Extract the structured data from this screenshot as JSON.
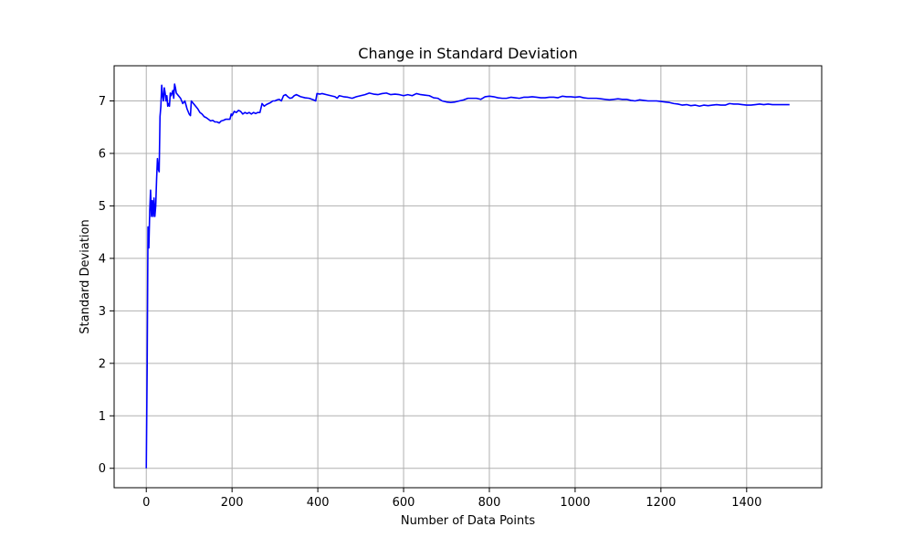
{
  "chart_data": {
    "type": "line",
    "title": "Change in Standard Deviation",
    "xlabel": "Number of Data Points",
    "ylabel": "Standard Deviation",
    "xlim": [
      -75,
      1575
    ],
    "ylim": [
      -0.37,
      7.67
    ],
    "xticks": [
      0,
      200,
      400,
      600,
      800,
      1000,
      1200,
      1400
    ],
    "yticks": [
      0,
      1,
      2,
      3,
      4,
      5,
      6,
      7
    ],
    "grid": true,
    "legend": "none",
    "series": [
      {
        "color": "#0000ff",
        "points": [
          [
            0,
            0
          ],
          [
            2,
            1.9
          ],
          [
            4,
            4.6
          ],
          [
            6,
            4.2
          ],
          [
            8,
            4.9
          ],
          [
            10,
            5.3
          ],
          [
            12,
            4.8
          ],
          [
            14,
            5.1
          ],
          [
            16,
            4.8
          ],
          [
            18,
            5.15
          ],
          [
            20,
            4.8
          ],
          [
            22,
            5.0
          ],
          [
            24,
            5.5
          ],
          [
            26,
            5.9
          ],
          [
            28,
            5.7
          ],
          [
            30,
            5.65
          ],
          [
            32,
            6.7
          ],
          [
            34,
            6.9
          ],
          [
            36,
            7.3
          ],
          [
            38,
            7.1
          ],
          [
            40,
            7.0
          ],
          [
            42,
            7.25
          ],
          [
            44,
            7.15
          ],
          [
            46,
            7.0
          ],
          [
            48,
            7.1
          ],
          [
            50,
            6.9
          ],
          [
            52,
            6.95
          ],
          [
            54,
            6.9
          ],
          [
            56,
            7.15
          ],
          [
            58,
            7.1
          ],
          [
            60,
            7.15
          ],
          [
            62,
            7.2
          ],
          [
            64,
            7.05
          ],
          [
            66,
            7.32
          ],
          [
            68,
            7.25
          ],
          [
            70,
            7.15
          ],
          [
            75,
            7.1
          ],
          [
            80,
            7.05
          ],
          [
            85,
            6.95
          ],
          [
            90,
            7.0
          ],
          [
            95,
            6.85
          ],
          [
            100,
            6.75
          ],
          [
            103,
            6.72
          ],
          [
            105,
            7.0
          ],
          [
            110,
            6.95
          ],
          [
            115,
            6.9
          ],
          [
            120,
            6.85
          ],
          [
            125,
            6.78
          ],
          [
            130,
            6.75
          ],
          [
            135,
            6.7
          ],
          [
            140,
            6.68
          ],
          [
            145,
            6.65
          ],
          [
            150,
            6.62
          ],
          [
            155,
            6.63
          ],
          [
            160,
            6.6
          ],
          [
            165,
            6.6
          ],
          [
            170,
            6.58
          ],
          [
            175,
            6.62
          ],
          [
            180,
            6.63
          ],
          [
            185,
            6.65
          ],
          [
            190,
            6.65
          ],
          [
            195,
            6.65
          ],
          [
            198,
            6.75
          ],
          [
            200,
            6.72
          ],
          [
            205,
            6.8
          ],
          [
            210,
            6.78
          ],
          [
            215,
            6.82
          ],
          [
            220,
            6.8
          ],
          [
            225,
            6.75
          ],
          [
            230,
            6.78
          ],
          [
            235,
            6.76
          ],
          [
            240,
            6.78
          ],
          [
            245,
            6.75
          ],
          [
            250,
            6.78
          ],
          [
            255,
            6.76
          ],
          [
            260,
            6.78
          ],
          [
            265,
            6.78
          ],
          [
            270,
            6.95
          ],
          [
            275,
            6.9
          ],
          [
            280,
            6.93
          ],
          [
            285,
            6.95
          ],
          [
            290,
            6.97
          ],
          [
            295,
            7.0
          ],
          [
            300,
            7.0
          ],
          [
            305,
            7.02
          ],
          [
            310,
            7.03
          ],
          [
            315,
            7.0
          ],
          [
            320,
            7.1
          ],
          [
            325,
            7.12
          ],
          [
            330,
            7.08
          ],
          [
            335,
            7.05
          ],
          [
            340,
            7.06
          ],
          [
            345,
            7.1
          ],
          [
            350,
            7.12
          ],
          [
            355,
            7.1
          ],
          [
            360,
            7.08
          ],
          [
            370,
            7.06
          ],
          [
            380,
            7.05
          ],
          [
            390,
            7.02
          ],
          [
            395,
            7.0
          ],
          [
            398,
            7.14
          ],
          [
            405,
            7.13
          ],
          [
            410,
            7.14
          ],
          [
            420,
            7.12
          ],
          [
            430,
            7.1
          ],
          [
            440,
            7.08
          ],
          [
            445,
            7.05
          ],
          [
            450,
            7.1
          ],
          [
            460,
            7.08
          ],
          [
            470,
            7.07
          ],
          [
            480,
            7.05
          ],
          [
            490,
            7.08
          ],
          [
            500,
            7.1
          ],
          [
            510,
            7.12
          ],
          [
            520,
            7.15
          ],
          [
            530,
            7.13
          ],
          [
            540,
            7.12
          ],
          [
            550,
            7.14
          ],
          [
            560,
            7.15
          ],
          [
            570,
            7.12
          ],
          [
            580,
            7.13
          ],
          [
            590,
            7.12
          ],
          [
            600,
            7.1
          ],
          [
            610,
            7.12
          ],
          [
            620,
            7.1
          ],
          [
            630,
            7.14
          ],
          [
            640,
            7.12
          ],
          [
            650,
            7.11
          ],
          [
            660,
            7.1
          ],
          [
            670,
            7.06
          ],
          [
            680,
            7.05
          ],
          [
            690,
            7.0
          ],
          [
            700,
            6.98
          ],
          [
            710,
            6.97
          ],
          [
            720,
            6.98
          ],
          [
            730,
            7.0
          ],
          [
            740,
            7.02
          ],
          [
            750,
            7.05
          ],
          [
            760,
            7.05
          ],
          [
            770,
            7.05
          ],
          [
            780,
            7.03
          ],
          [
            790,
            7.08
          ],
          [
            800,
            7.09
          ],
          [
            810,
            7.08
          ],
          [
            820,
            7.06
          ],
          [
            830,
            7.05
          ],
          [
            840,
            7.05
          ],
          [
            850,
            7.07
          ],
          [
            860,
            7.06
          ],
          [
            870,
            7.05
          ],
          [
            880,
            7.07
          ],
          [
            890,
            7.07
          ],
          [
            900,
            7.08
          ],
          [
            910,
            7.07
          ],
          [
            920,
            7.06
          ],
          [
            930,
            7.06
          ],
          [
            940,
            7.07
          ],
          [
            950,
            7.07
          ],
          [
            960,
            7.06
          ],
          [
            970,
            7.09
          ],
          [
            980,
            7.08
          ],
          [
            990,
            7.08
          ],
          [
            1000,
            7.07
          ],
          [
            1010,
            7.08
          ],
          [
            1020,
            7.06
          ],
          [
            1030,
            7.05
          ],
          [
            1040,
            7.05
          ],
          [
            1050,
            7.05
          ],
          [
            1060,
            7.04
          ],
          [
            1070,
            7.03
          ],
          [
            1080,
            7.02
          ],
          [
            1090,
            7.03
          ],
          [
            1100,
            7.04
          ],
          [
            1110,
            7.03
          ],
          [
            1120,
            7.03
          ],
          [
            1130,
            7.01
          ],
          [
            1140,
            7.0
          ],
          [
            1150,
            7.02
          ],
          [
            1160,
            7.01
          ],
          [
            1170,
            7.0
          ],
          [
            1180,
            7.0
          ],
          [
            1190,
            7.0
          ],
          [
            1200,
            6.99
          ],
          [
            1210,
            6.98
          ],
          [
            1220,
            6.97
          ],
          [
            1230,
            6.95
          ],
          [
            1240,
            6.94
          ],
          [
            1250,
            6.92
          ],
          [
            1260,
            6.93
          ],
          [
            1270,
            6.91
          ],
          [
            1280,
            6.92
          ],
          [
            1290,
            6.9
          ],
          [
            1300,
            6.92
          ],
          [
            1310,
            6.91
          ],
          [
            1320,
            6.92
          ],
          [
            1330,
            6.93
          ],
          [
            1340,
            6.92
          ],
          [
            1350,
            6.92
          ],
          [
            1360,
            6.95
          ],
          [
            1370,
            6.94
          ],
          [
            1380,
            6.94
          ],
          [
            1390,
            6.93
          ],
          [
            1400,
            6.92
          ],
          [
            1410,
            6.92
          ],
          [
            1420,
            6.93
          ],
          [
            1430,
            6.94
          ],
          [
            1440,
            6.93
          ],
          [
            1450,
            6.94
          ],
          [
            1460,
            6.93
          ],
          [
            1470,
            6.93
          ],
          [
            1480,
            6.93
          ],
          [
            1490,
            6.93
          ],
          [
            1500,
            6.93
          ]
        ]
      }
    ]
  }
}
